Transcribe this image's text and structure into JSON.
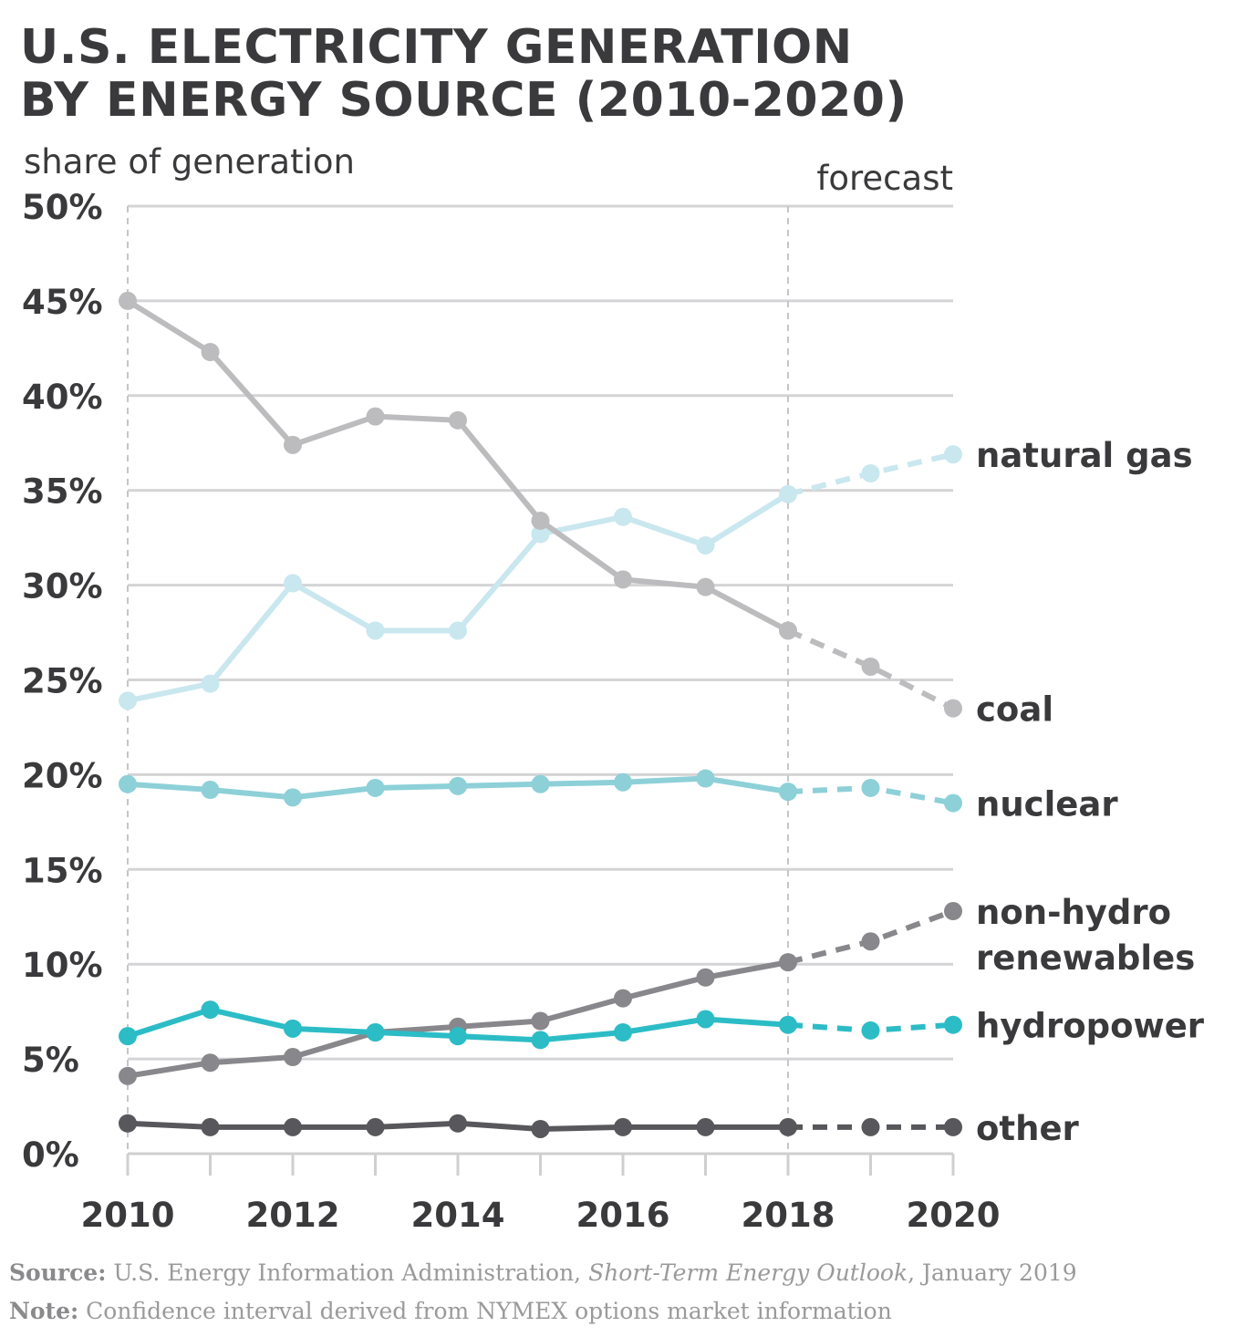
{
  "title_line1": "U.S. ELECTRICITY GENERATION",
  "title_line2": "BY ENERGY SOURCE (2010-2020)",
  "chart_data": {
    "type": "line",
    "ylabel": "share of generation",
    "forecast_label": "forecast",
    "forecast_start": 2018,
    "ylim": [
      0,
      50
    ],
    "xlim": [
      2010,
      2020
    ],
    "y_ticks": [
      "0%",
      "5%",
      "10%",
      "15%",
      "20%",
      "25%",
      "30%",
      "35%",
      "40%",
      "45%",
      "50%"
    ],
    "x_ticks": [
      "2010",
      "2012",
      "2014",
      "2016",
      "2018",
      "2020"
    ],
    "grid": true,
    "legend": "right-end labels",
    "x": [
      2010,
      2011,
      2012,
      2013,
      2014,
      2015,
      2016,
      2017,
      2018,
      2019,
      2020
    ],
    "series": [
      {
        "name": "natural gas",
        "label_lines": [
          "natural gas"
        ],
        "color": "#c9e7ee",
        "values": [
          23.9,
          24.8,
          30.1,
          27.6,
          27.6,
          32.7,
          33.6,
          32.1,
          34.8,
          35.9,
          36.9
        ]
      },
      {
        "name": "coal",
        "label_lines": [
          "coal"
        ],
        "color": "#bcbcbe",
        "values": [
          45.0,
          42.3,
          37.4,
          38.9,
          38.7,
          33.4,
          30.3,
          29.9,
          27.6,
          25.7,
          23.5
        ]
      },
      {
        "name": "nuclear",
        "label_lines": [
          "nuclear"
        ],
        "color": "#8dd0d8",
        "values": [
          19.5,
          19.2,
          18.8,
          19.3,
          19.4,
          19.5,
          19.6,
          19.8,
          19.1,
          19.3,
          18.5
        ]
      },
      {
        "name": "non-hydro renewables",
        "label_lines": [
          "non-hydro",
          "renewables"
        ],
        "color": "#88888c",
        "values": [
          4.1,
          4.8,
          5.1,
          6.4,
          6.7,
          7.0,
          8.2,
          9.3,
          10.1,
          11.2,
          12.8
        ]
      },
      {
        "name": "hydropower",
        "label_lines": [
          "hydropower"
        ],
        "color": "#2cbcc6",
        "values": [
          6.2,
          7.6,
          6.6,
          6.4,
          6.2,
          6.0,
          6.4,
          7.1,
          6.8,
          6.5,
          6.8
        ]
      },
      {
        "name": "other",
        "label_lines": [
          "other"
        ],
        "color": "#58585c",
        "values": [
          1.6,
          1.4,
          1.4,
          1.4,
          1.6,
          1.3,
          1.4,
          1.4,
          1.4,
          1.4,
          1.4
        ]
      }
    ]
  },
  "source": {
    "source_label": "Source:",
    "source_text": "U.S. Energy Information Administration,",
    "source_italic": "Short-Term Energy Outlook",
    "source_tail": ", January 2019",
    "note_label": "Note:",
    "note_text": "Confidence interval derived from NYMEX options market information"
  }
}
